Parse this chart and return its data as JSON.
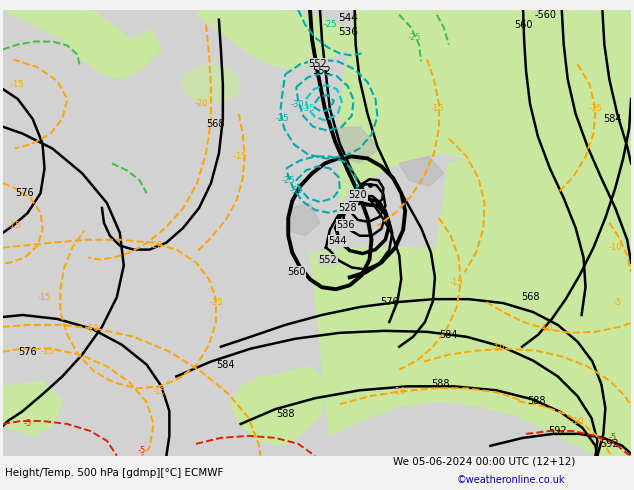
{
  "title_left": "Height/Temp. 500 hPa [gdmp][°C] ECMWF",
  "title_right": "We 05-06-2024 00:00 UTC (12+12)",
  "credit": "©weatheronline.co.uk",
  "figsize": [
    6.34,
    4.9
  ],
  "dpi": 100,
  "bg_gray": "#d2d2d2",
  "land_green": "#c8e8a0",
  "land_gray": "#b8b8b8",
  "height_color": "#000000",
  "temp_orange": "#ffa500",
  "temp_red": "#dd2200",
  "temp_green": "#44bb44",
  "teal_color": "#00aaaa",
  "cyan_color": "#00cccc",
  "footer_color": "#000000",
  "credit_color": "#0000cc"
}
